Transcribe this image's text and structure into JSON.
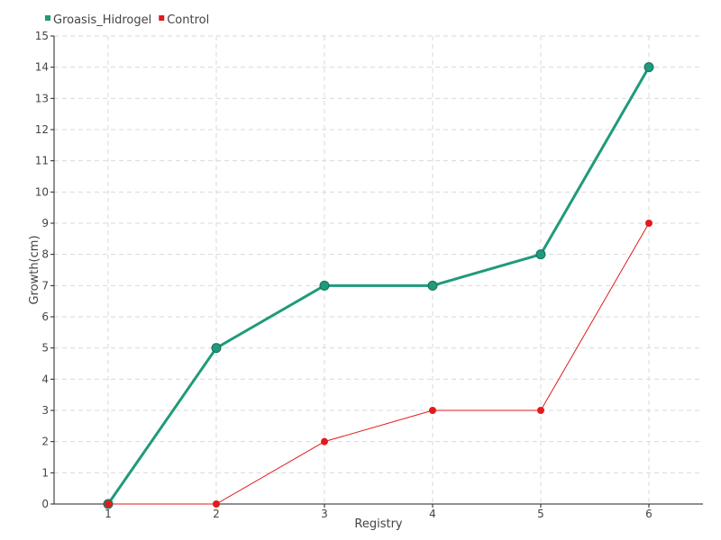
{
  "chart_data": {
    "type": "line",
    "title": "",
    "xlabel": "Registry",
    "ylabel": "Growth(cm)",
    "categories": [
      "1",
      "2",
      "3",
      "4",
      "5",
      "6"
    ],
    "ylim": [
      0,
      15
    ],
    "yticks": [
      "0",
      "1",
      "2",
      "3",
      "4",
      "5",
      "6",
      "7",
      "8",
      "9",
      "10",
      "11",
      "12",
      "13",
      "14",
      "15"
    ],
    "grid": true,
    "legend_position": "top-left",
    "series": [
      {
        "name": "Groasis_Hidrogel",
        "values": [
          0,
          5,
          7,
          7,
          8,
          14
        ],
        "color": "#1f9a7a",
        "marker_color": "#1f9a7a",
        "style": "thick"
      },
      {
        "name": "Control",
        "values": [
          0,
          0,
          2,
          3,
          3,
          9
        ],
        "color": "#e31a1c",
        "marker_color": "#e31a1c",
        "style": "thin"
      }
    ]
  }
}
